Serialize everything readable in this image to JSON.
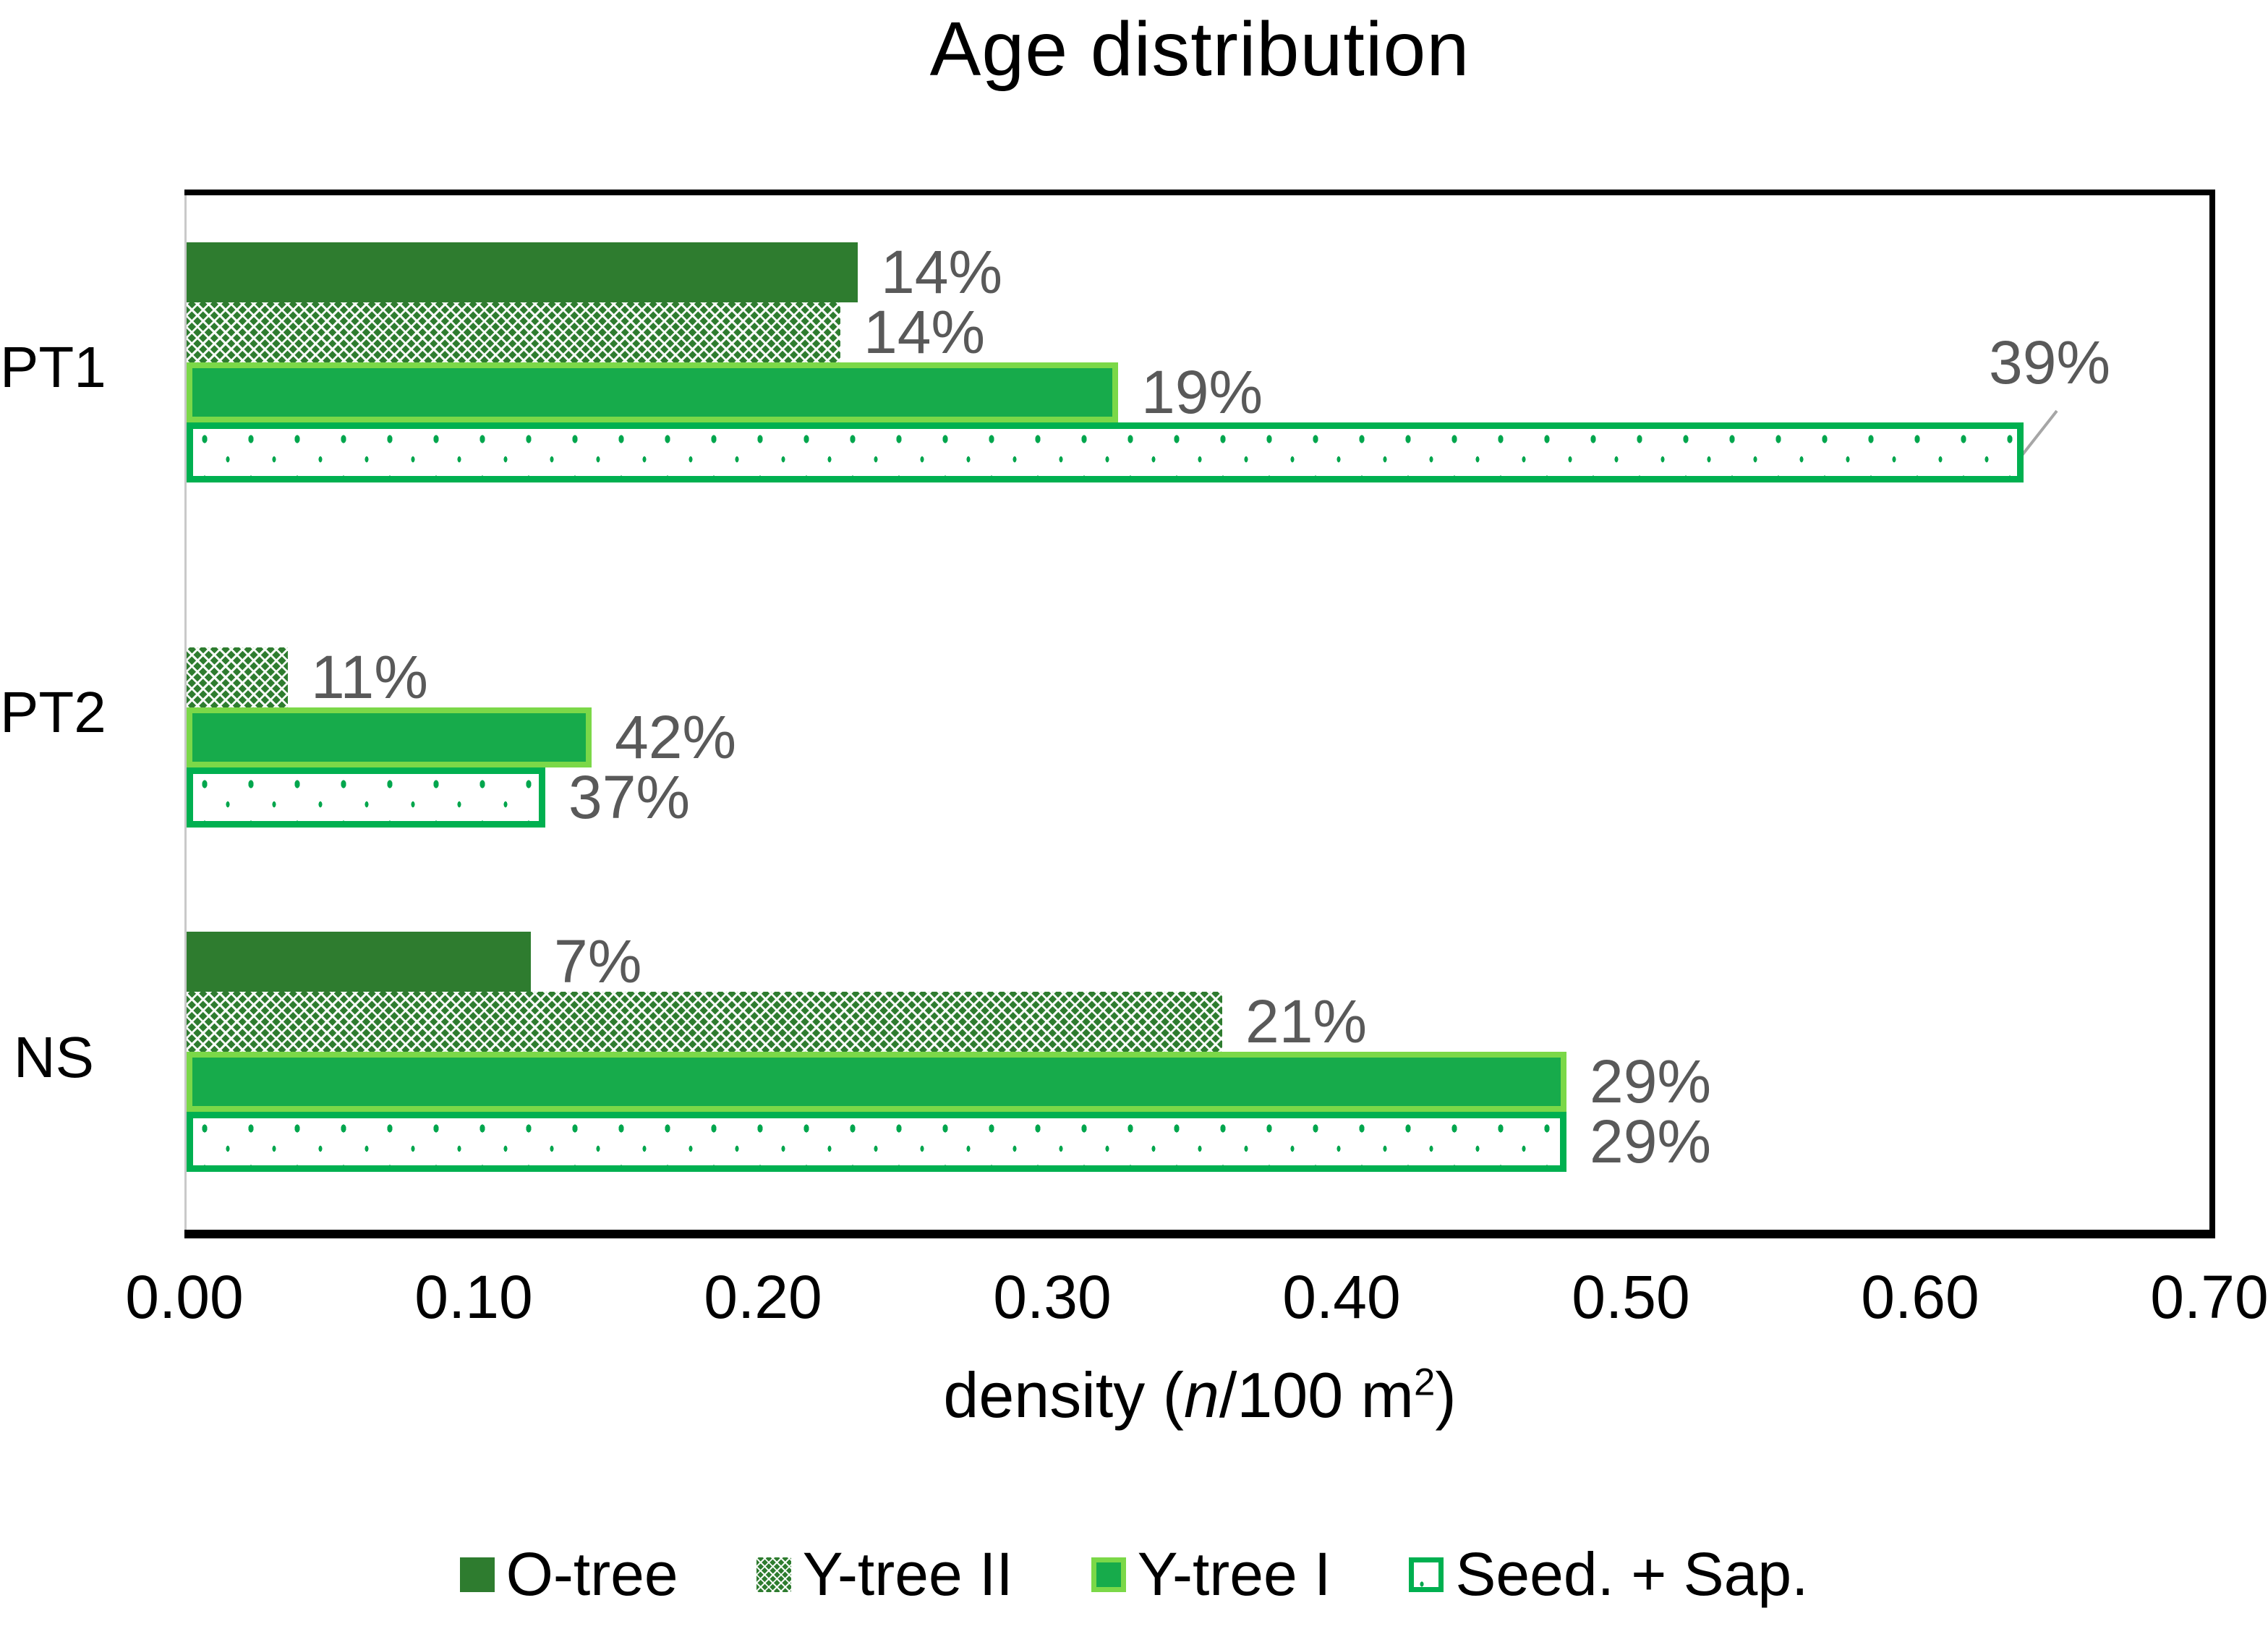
{
  "chart_data": {
    "type": "bar",
    "orientation": "horizontal",
    "title": "Age distribution",
    "categories": [
      "PT1",
      "PT2",
      "NS"
    ],
    "series": [
      {
        "name": "O-tree",
        "style": "solid-dark",
        "values": [
          0.232,
          0,
          0.119
        ],
        "labels": [
          "14%",
          null,
          "7%"
        ]
      },
      {
        "name": "Y-tree II",
        "style": "lattice",
        "values": [
          0.226,
          0.035,
          0.358
        ],
        "labels": [
          "14%",
          "11%",
          "21%"
        ]
      },
      {
        "name": "Y-tree I",
        "style": "solid-bright",
        "values": [
          0.322,
          0.14,
          0.477
        ],
        "labels": [
          "19%",
          "42%",
          "29%"
        ]
      },
      {
        "name": "Seed. + Sap.",
        "style": "dotted",
        "values": [
          0.635,
          0.124,
          0.477
        ],
        "labels": [
          "39%",
          "37%",
          "29%"
        ],
        "label_dx": [
          -80,
          0,
          0
        ],
        "label_dy": [
          -124,
          0,
          0
        ],
        "leader": [
          true,
          false,
          false
        ]
      }
    ],
    "xlim": [
      0,
      0.7
    ],
    "xticks": [
      "0.00",
      "0.10",
      "0.20",
      "0.30",
      "0.40",
      "0.50",
      "0.60",
      "0.70"
    ],
    "xlabel_parts": {
      "prefix": "density (",
      "italic": "n",
      "unit": "/100 m",
      "sup": "2",
      "suffix": ")"
    },
    "legend_position": "bottom",
    "grid": false
  },
  "theme": {
    "dark-green": "#2E7C2F",
    "bright-green": "#17AB4B",
    "bright-green-border": "#7BD848",
    "seed-border": "#00B050",
    "dot-green": "#00A64D",
    "label-gray": "#595959",
    "leader-gray": "#A6A6A6"
  }
}
